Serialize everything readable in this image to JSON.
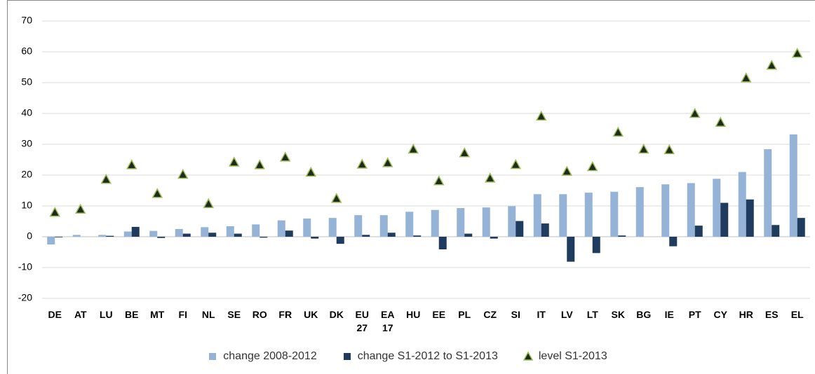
{
  "chart_data": {
    "type": "bar",
    "categories": [
      "DE",
      "AT",
      "LU",
      "BE",
      "MT",
      "FI",
      "NL",
      "SE",
      "RO",
      "FR",
      "UK",
      "DK",
      "EU 27",
      "EA 17",
      "HU",
      "EE",
      "PL",
      "CZ",
      "SI",
      "IT",
      "LV",
      "LT",
      "SK",
      "BG",
      "IE",
      "PT",
      "CY",
      "HR",
      "ES",
      "EL"
    ],
    "series": [
      {
        "name": "change 2008-2012",
        "type": "bar",
        "color": "#95b3d7",
        "values": [
          -2.5,
          0.6,
          0.6,
          1.7,
          1.9,
          2.5,
          3.1,
          3.4,
          4.0,
          5.3,
          5.9,
          6.1,
          7.0,
          7.0,
          8.1,
          8.7,
          9.3,
          9.5,
          9.9,
          13.8,
          13.8,
          14.3,
          14.6,
          16.1,
          17.0,
          17.4,
          18.8,
          21.0,
          28.4,
          33.2
        ]
      },
      {
        "name": "change S1-2012 to S1-2013",
        "type": "bar",
        "color": "#1f3b5e",
        "values": [
          -0.2,
          0,
          0.3,
          3.2,
          -0.4,
          1.0,
          1.3,
          1.0,
          -0.3,
          2.0,
          -0.6,
          -2.3,
          0.6,
          1.3,
          0.4,
          -4.1,
          1.0,
          -0.6,
          5.1,
          4.3,
          -8.1,
          -5.3,
          0.4,
          0,
          -3.1,
          3.6,
          11.0,
          12.1,
          3.8,
          6.1
        ]
      },
      {
        "name": "level S1-2013",
        "type": "scatter",
        "color": "#1d2b1a",
        "edge_color": "#9bbb59",
        "values": [
          7.8,
          8.8,
          18.5,
          23.2,
          13.9,
          20.1,
          10.6,
          24.1,
          23.2,
          25.7,
          20.8,
          12.3,
          23.4,
          23.9,
          28.3,
          18.0,
          27.1,
          18.9,
          23.3,
          39.0,
          21.1,
          22.6,
          33.8,
          28.3,
          28.1,
          39.9,
          37.0,
          51.4,
          55.5,
          59.4
        ]
      }
    ],
    "ylim": [
      -20,
      70
    ],
    "yticks": [
      -20,
      -10,
      0,
      10,
      20,
      30,
      40,
      50,
      60,
      70
    ],
    "grid": true,
    "legend": "bottom"
  }
}
